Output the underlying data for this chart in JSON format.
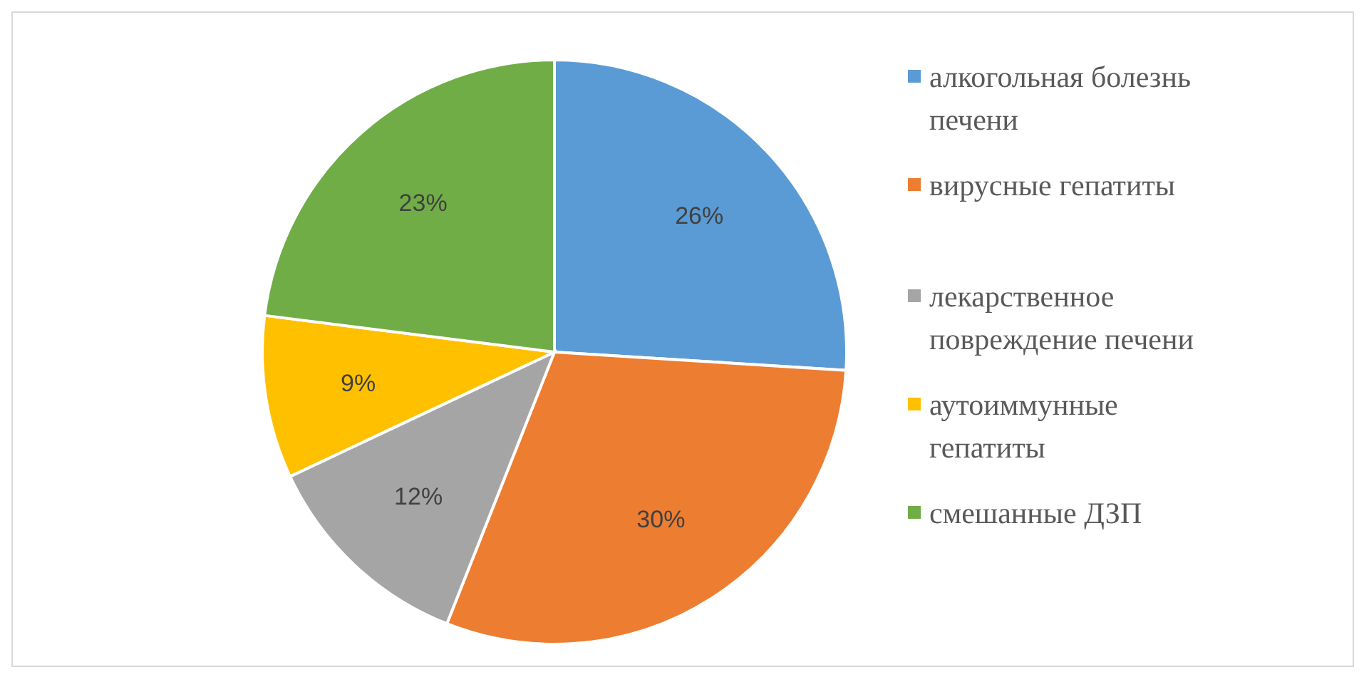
{
  "chart_data": {
    "type": "pie",
    "categories": [
      "алкогольная болезнь печени",
      "вирусные гепатиты",
      "лекарственное повреждение печени",
      "аутоиммунные гепатиты",
      "смешанные ДЗП"
    ],
    "values": [
      26,
      30,
      12,
      9,
      23
    ],
    "colors": [
      "#5b9bd5",
      "#ed7d31",
      "#a5a5a5",
      "#ffc000",
      "#70ad47"
    ],
    "value_labels": [
      "26%",
      "30%",
      "12%",
      "9%",
      "23%"
    ],
    "legend": "right"
  }
}
